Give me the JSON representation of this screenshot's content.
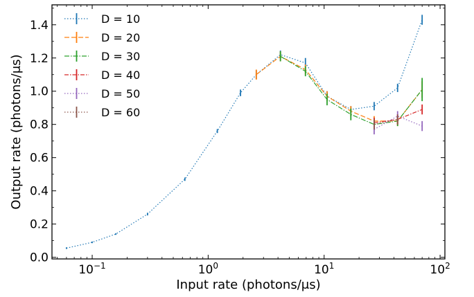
{
  "chart_data": {
    "type": "line",
    "xlabel": "Input rate (photons/μs)",
    "ylabel": "Output rate (photons/μs)",
    "xscale": "log",
    "xlim": [
      0.045,
      110
    ],
    "ylim": [
      -0.01,
      1.52
    ],
    "x_ticks": [
      {
        "value": 0.1,
        "label": "10−1",
        "base": "10",
        "exp": "−1"
      },
      {
        "value": 1,
        "label": "100",
        "base": "10",
        "exp": "0"
      },
      {
        "value": 10,
        "label": "101",
        "base": "10",
        "exp": "1"
      },
      {
        "value": 100,
        "label": "102",
        "base": "10",
        "exp": "2"
      }
    ],
    "y_ticks": [
      {
        "value": 0.0,
        "label": "0.0"
      },
      {
        "value": 0.2,
        "label": "0.2"
      },
      {
        "value": 0.4,
        "label": "0.4"
      },
      {
        "value": 0.6,
        "label": "0.6"
      },
      {
        "value": 0.8,
        "label": "0.8"
      },
      {
        "value": 1.0,
        "label": "1.0"
      },
      {
        "value": 1.2,
        "label": "1.2"
      },
      {
        "value": 1.4,
        "label": "1.4"
      }
    ],
    "legend_position": "top-left",
    "grid": false,
    "series": [
      {
        "name": "D = 10",
        "color": "#1f77b4",
        "dash": "1.5,2.5",
        "x": [
          0.06,
          0.1,
          0.16,
          0.3,
          0.63,
          1.2,
          1.9,
          2.6,
          4.2,
          6.9,
          10.6,
          17,
          27,
          43,
          70
        ],
        "y": [
          0.055,
          0.09,
          0.14,
          0.26,
          0.47,
          0.76,
          0.99,
          1.1,
          1.22,
          1.17,
          0.97,
          0.89,
          0.91,
          1.02,
          1.43
        ],
        "err": [
          0.005,
          0.005,
          0.005,
          0.008,
          0.01,
          0.012,
          0.02,
          0.025,
          0.025,
          0.03,
          0.03,
          0.02,
          0.025,
          0.025,
          0.03
        ]
      },
      {
        "name": "D = 20",
        "color": "#ff7f0e",
        "dash": "7,3",
        "x": [
          2.6,
          4.2,
          6.9,
          10.6,
          17,
          27,
          43,
          70
        ],
        "y": [
          1.1,
          1.21,
          1.13,
          0.97,
          0.88,
          0.82,
          0.82,
          1.01
        ],
        "err": [
          0.03,
          0.03,
          0.03,
          0.03,
          0.03,
          0.03,
          0.03,
          0.05
        ]
      },
      {
        "name": "D = 30",
        "color": "#2ca02c",
        "dash": "7,2,1.5,2",
        "x": [
          4.2,
          6.9,
          10.6,
          17,
          27,
          43,
          70
        ],
        "y": [
          1.21,
          1.12,
          0.95,
          0.86,
          0.8,
          0.82,
          1.01
        ],
        "err": [
          0.03,
          0.03,
          0.035,
          0.035,
          0.035,
          0.03,
          0.07
        ]
      },
      {
        "name": "D = 40",
        "color": "#d62728",
        "dash": "6,2,1.5,2",
        "x": [
          27,
          43,
          70
        ],
        "y": [
          0.81,
          0.83,
          0.89
        ],
        "err": [
          0.03,
          0.03,
          0.03
        ]
      },
      {
        "name": "D = 50",
        "color": "#9467bd",
        "dash": "1.5,2.5",
        "x": [
          27,
          43,
          70
        ],
        "y": [
          0.77,
          0.85,
          0.79
        ],
        "err": [
          0.03,
          0.03,
          0.03
        ]
      },
      {
        "name": "D = 60",
        "color": "#8c564b",
        "dash": "1.5,2.5",
        "x": [
          27,
          43
        ],
        "y": [
          0.8,
          0.83
        ],
        "err": [
          0.03,
          0.03
        ]
      }
    ]
  }
}
